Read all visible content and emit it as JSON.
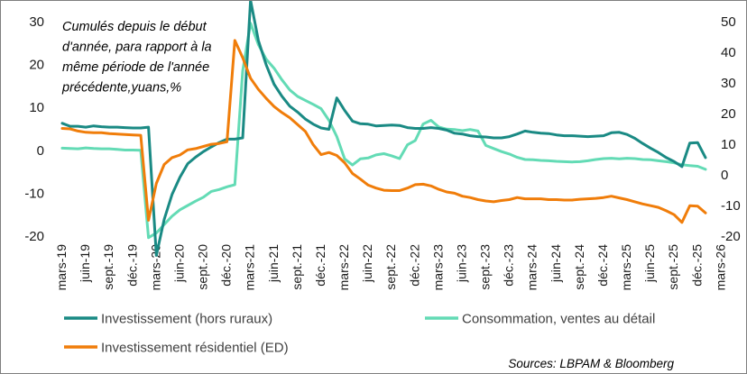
{
  "chart_data": {
    "type": "line",
    "annotation": [
      "Cumulés depuis le début",
      "d'année, para rapport à la",
      "même période de l'année",
      "précédente,yuans,%"
    ],
    "source": "Sources: LBPAM & Bloomberg",
    "x_tick_labels": [
      "mars-19",
      "juin-19",
      "sept.-19",
      "déc.-19",
      "mars-20",
      "juin-20",
      "sept.-20",
      "déc.-20",
      "mars-21",
      "juin-21",
      "sept.-21",
      "déc.-21",
      "mars-22",
      "juin-22",
      "sept.-22",
      "déc.-22",
      "mars-23",
      "juin-23",
      "sept.-23",
      "déc.-23",
      "mars-24",
      "juin-24",
      "sept.-24",
      "déc.-24",
      "mars-25",
      "juin-25",
      "sept.-25",
      "déc.-25",
      "mars-26"
    ],
    "x_start": "mars-19",
    "x_end": "avr.-26",
    "ylim_left": [
      -20,
      30
    ],
    "yticks_left": [
      30,
      20,
      10,
      0,
      -10,
      -20
    ],
    "ylim_right": [
      -20,
      50
    ],
    "yticks_right": [
      50,
      40,
      30,
      20,
      10,
      0,
      -10,
      -20
    ],
    "grid": false,
    "legend_position": "bottom",
    "series": [
      {
        "name": "Investissement (hors ruraux)",
        "axis": "left",
        "color": "#1a8a84",
        "values": [
          6.3,
          5.6,
          5.6,
          5.4,
          5.7,
          5.5,
          5.4,
          5.4,
          5.3,
          5.2,
          5.2,
          5.4,
          -24.5,
          -16.1,
          -10.3,
          -6.3,
          -3.1,
          -1.6,
          -0.3,
          0.8,
          1.8,
          2.6,
          2.6,
          2.9,
          35.0,
          25.6,
          19.9,
          15.4,
          12.6,
          10.3,
          8.9,
          7.3,
          6.1,
          5.2,
          4.9,
          12.2,
          9.3,
          6.8,
          6.2,
          6.1,
          5.7,
          5.8,
          5.9,
          5.8,
          5.3,
          5.1,
          5.1,
          5.3,
          5.1,
          4.7,
          4.0,
          3.8,
          3.4,
          3.2,
          3.1,
          2.9,
          2.9,
          3.2,
          3.8,
          4.5,
          4.2,
          4.0,
          3.9,
          3.6,
          3.4,
          3.4,
          3.3,
          3.2,
          3.3,
          3.4,
          4.1,
          4.2,
          3.7,
          2.8,
          1.6,
          0.5,
          -0.5,
          -1.7,
          -2.6,
          -3.8,
          1.7,
          1.8,
          -1.7
        ]
      },
      {
        "name": "Consommation, ventes au détail",
        "axis": "right",
        "color": "#63dbb5",
        "values": [
          8.7,
          8.6,
          8.5,
          8.8,
          8.6,
          8.5,
          8.5,
          8.3,
          8.1,
          8.1,
          8.0,
          -20.5,
          -19.0,
          -16.2,
          -13.5,
          -11.4,
          -10.0,
          -8.6,
          -7.3,
          -5.4,
          -4.8,
          -3.9,
          -3.2,
          33.9,
          49.5,
          42.5,
          37.7,
          34.8,
          31.0,
          27.7,
          25.6,
          24.3,
          23.0,
          21.6,
          17.8,
          12.5,
          5.2,
          3.2,
          5.2,
          5.5,
          6.5,
          6.9,
          6.2,
          5.3,
          9.8,
          11.2,
          16.6,
          17.8,
          15.6,
          14.9,
          14.8,
          14.4,
          14.8,
          14.3,
          9.6,
          8.6,
          7.6,
          6.8,
          5.7,
          5.0,
          4.9,
          4.7,
          4.6,
          4.4,
          4.3,
          4.2,
          4.3,
          4.6,
          5.0,
          5.3,
          5.4,
          5.2,
          5.4,
          5.3,
          5.0,
          4.9,
          4.6,
          4.3,
          3.9,
          3.3,
          3.0,
          2.8,
          1.8
        ]
      },
      {
        "name": "Investissement résidentiel (ED)",
        "axis": "left",
        "color": "#f07d0a",
        "values": [
          5.1,
          5.0,
          4.5,
          4.2,
          4.1,
          4.1,
          3.9,
          3.8,
          3.7,
          3.6,
          3.5,
          -16.3,
          -7.7,
          -3.3,
          -1.7,
          -1.1,
          0.1,
          0.4,
          0.9,
          1.4,
          1.6,
          2.0,
          25.6,
          21.6,
          16.8,
          14.2,
          12.1,
          10.2,
          8.8,
          7.6,
          6.0,
          4.4,
          1.3,
          -1.0,
          -0.5,
          -1.2,
          -2.9,
          -5.4,
          -6.7,
          -8.1,
          -8.8,
          -9.3,
          -9.4,
          -9.4,
          -8.8,
          -8.0,
          -7.9,
          -8.3,
          -9.1,
          -9.7,
          -10.0,
          -10.7,
          -11.0,
          -11.5,
          -11.8,
          -12.0,
          -11.7,
          -11.5,
          -11.0,
          -11.3,
          -11.3,
          -11.3,
          -11.5,
          -11.5,
          -11.6,
          -11.6,
          -11.4,
          -11.3,
          -11.2,
          -11.0,
          -10.7,
          -11.1,
          -11.5,
          -12.0,
          -12.5,
          -12.9,
          -13.3,
          -14.1,
          -15.0,
          -16.8,
          -12.9,
          -13.0,
          -14.6
        ]
      }
    ]
  }
}
